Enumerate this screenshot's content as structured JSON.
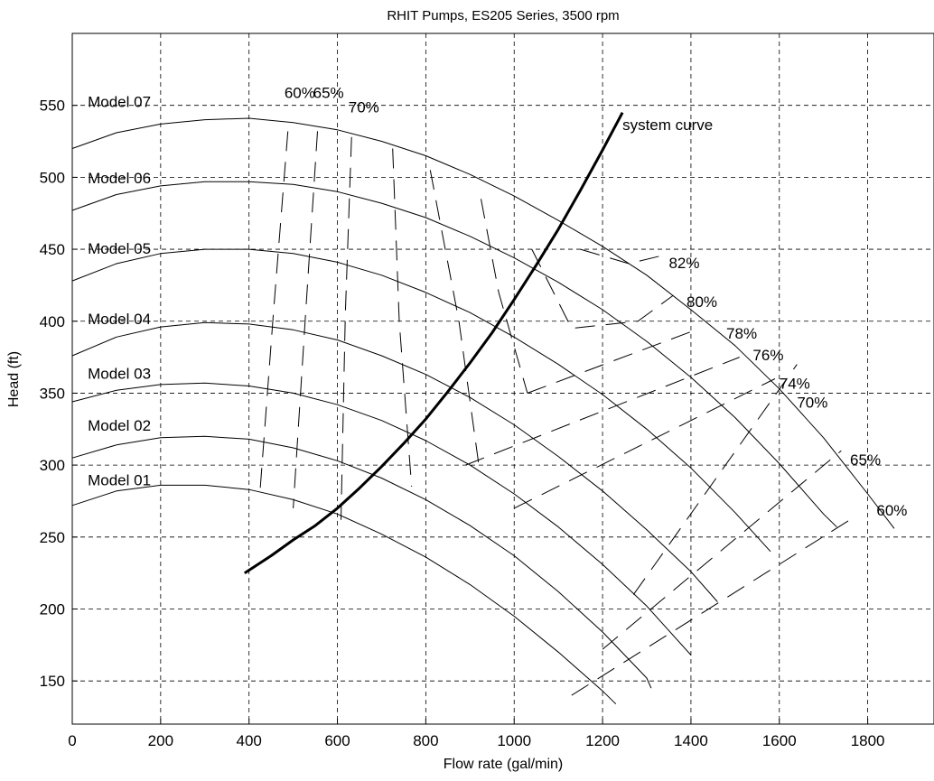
{
  "chart_data": {
    "type": "line",
    "title": "RHIT Pumps,  ES205 Series, 3500 rpm",
    "xlabel": "Flow rate (gal/min)",
    "ylabel": "Head (ft)",
    "xlim": [
      0,
      1950
    ],
    "ylim": [
      120,
      600
    ],
    "xticks": [
      0,
      200,
      400,
      600,
      800,
      1000,
      1200,
      1400,
      1600,
      1800
    ],
    "yticks": [
      150,
      200,
      250,
      300,
      350,
      400,
      450,
      500,
      550
    ],
    "grid": true,
    "series": [
      {
        "name": "Model 07",
        "points": [
          [
            0,
            520
          ],
          [
            100,
            531
          ],
          [
            200,
            537
          ],
          [
            300,
            540
          ],
          [
            400,
            541
          ],
          [
            500,
            538
          ],
          [
            600,
            533
          ],
          [
            700,
            525
          ],
          [
            800,
            515
          ],
          [
            900,
            502
          ],
          [
            1000,
            487
          ],
          [
            1100,
            470
          ],
          [
            1200,
            452
          ],
          [
            1300,
            432
          ],
          [
            1400,
            408
          ],
          [
            1500,
            383
          ],
          [
            1600,
            353
          ],
          [
            1700,
            319
          ],
          [
            1800,
            280
          ],
          [
            1860,
            256
          ]
        ]
      },
      {
        "name": "Model 06",
        "points": [
          [
            0,
            477
          ],
          [
            100,
            488
          ],
          [
            200,
            494
          ],
          [
            300,
            497
          ],
          [
            400,
            497
          ],
          [
            500,
            495
          ],
          [
            600,
            490
          ],
          [
            700,
            482
          ],
          [
            800,
            472
          ],
          [
            900,
            459
          ],
          [
            1000,
            444
          ],
          [
            1100,
            427
          ],
          [
            1200,
            408
          ],
          [
            1300,
            386
          ],
          [
            1400,
            361
          ],
          [
            1500,
            333
          ],
          [
            1600,
            301
          ],
          [
            1700,
            266
          ],
          [
            1730,
            257
          ]
        ]
      },
      {
        "name": "Model 05",
        "points": [
          [
            0,
            428
          ],
          [
            100,
            440
          ],
          [
            200,
            447
          ],
          [
            300,
            450
          ],
          [
            400,
            450
          ],
          [
            500,
            447
          ],
          [
            600,
            441
          ],
          [
            700,
            432
          ],
          [
            800,
            420
          ],
          [
            900,
            406
          ],
          [
            1000,
            389
          ],
          [
            1100,
            370
          ],
          [
            1200,
            349
          ],
          [
            1300,
            325
          ],
          [
            1400,
            298
          ],
          [
            1500,
            267
          ],
          [
            1580,
            240
          ]
        ]
      },
      {
        "name": "Model 04",
        "points": [
          [
            0,
            376
          ],
          [
            100,
            389
          ],
          [
            200,
            396
          ],
          [
            300,
            399
          ],
          [
            400,
            398
          ],
          [
            500,
            394
          ],
          [
            600,
            387
          ],
          [
            700,
            376
          ],
          [
            800,
            363
          ],
          [
            900,
            347
          ],
          [
            1000,
            328
          ],
          [
            1100,
            306
          ],
          [
            1200,
            282
          ],
          [
            1300,
            255
          ],
          [
            1400,
            226
          ],
          [
            1460,
            205
          ]
        ]
      },
      {
        "name": "Model 03",
        "points": [
          [
            0,
            344
          ],
          [
            100,
            352
          ],
          [
            200,
            356
          ],
          [
            300,
            357
          ],
          [
            400,
            355
          ],
          [
            500,
            350
          ],
          [
            600,
            342
          ],
          [
            700,
            331
          ],
          [
            800,
            317
          ],
          [
            900,
            300
          ],
          [
            1000,
            280
          ],
          [
            1100,
            257
          ],
          [
            1200,
            231
          ],
          [
            1300,
            202
          ],
          [
            1400,
            168
          ]
        ]
      },
      {
        "name": "Model 02",
        "points": [
          [
            0,
            305
          ],
          [
            100,
            314
          ],
          [
            200,
            319
          ],
          [
            300,
            320
          ],
          [
            400,
            318
          ],
          [
            500,
            312
          ],
          [
            600,
            303
          ],
          [
            700,
            291
          ],
          [
            800,
            276
          ],
          [
            900,
            258
          ],
          [
            1000,
            237
          ],
          [
            1100,
            212
          ],
          [
            1200,
            184
          ],
          [
            1300,
            152
          ],
          [
            1310,
            145
          ]
        ]
      },
      {
        "name": "Model 01",
        "points": [
          [
            0,
            272
          ],
          [
            100,
            282
          ],
          [
            200,
            286
          ],
          [
            300,
            286
          ],
          [
            400,
            283
          ],
          [
            500,
            276
          ],
          [
            600,
            266
          ],
          [
            700,
            252
          ],
          [
            800,
            236
          ],
          [
            900,
            217
          ],
          [
            1000,
            195
          ],
          [
            1100,
            170
          ],
          [
            1200,
            143
          ],
          [
            1230,
            134
          ]
        ]
      },
      {
        "name": "system curve",
        "points": [
          [
            390,
            225
          ],
          [
            450,
            237
          ],
          [
            500,
            248
          ],
          [
            550,
            258
          ],
          [
            600,
            270
          ],
          [
            650,
            284
          ],
          [
            700,
            299
          ],
          [
            750,
            315
          ],
          [
            800,
            332
          ],
          [
            850,
            351
          ],
          [
            900,
            371
          ],
          [
            950,
            392
          ],
          [
            1000,
            415
          ],
          [
            1050,
            439
          ],
          [
            1100,
            464
          ],
          [
            1150,
            491
          ],
          [
            1200,
            519
          ],
          [
            1245,
            545
          ]
        ]
      }
    ],
    "efficiency_contours": [
      {
        "name": "60%",
        "points": [
          [
            488,
            532
          ],
          [
            455,
            405
          ],
          [
            425,
            282
          ]
        ]
      },
      {
        "name": "60%",
        "points": [
          [
            1130,
            140
          ],
          [
            1760,
            262
          ]
        ]
      },
      {
        "name": "65%",
        "points": [
          [
            555,
            532
          ],
          [
            528,
            405
          ],
          [
            500,
            270
          ]
        ]
      },
      {
        "name": "65%",
        "points": [
          [
            1200,
            172
          ],
          [
            1740,
            310
          ]
        ]
      },
      {
        "name": "70%",
        "points": [
          [
            632,
            528
          ],
          [
            618,
            405
          ],
          [
            608,
            262
          ]
        ]
      },
      {
        "name": "70%",
        "points": [
          [
            1270,
            210
          ],
          [
            1640,
            370
          ]
        ]
      },
      {
        "name": "74%",
        "points": [
          [
            725,
            520
          ],
          [
            740,
            400
          ],
          [
            768,
            285
          ]
        ]
      },
      {
        "name": "74%",
        "points": [
          [
            1000,
            270
          ],
          [
            1590,
            360
          ]
        ]
      },
      {
        "name": "76%",
        "points": [
          [
            810,
            505
          ],
          [
            875,
            400
          ],
          [
            920,
            300
          ]
        ]
      },
      {
        "name": "76%",
        "points": [
          [
            890,
            300
          ],
          [
            1510,
            375
          ]
        ]
      },
      {
        "name": "78%",
        "points": [
          [
            925,
            485
          ],
          [
            965,
            420
          ],
          [
            1030,
            350
          ]
        ]
      },
      {
        "name": "78%",
        "points": [
          [
            1030,
            350
          ],
          [
            1420,
            395
          ]
        ]
      },
      {
        "name": "80%",
        "points": [
          [
            1040,
            450
          ],
          [
            1130,
            395
          ],
          [
            1280,
            400
          ],
          [
            1360,
            418
          ]
        ]
      },
      {
        "name": "82%",
        "points": [
          [
            1150,
            450
          ],
          [
            1260,
            440
          ],
          [
            1340,
            446
          ]
        ]
      }
    ],
    "annotations": [
      {
        "text": "Model 07",
        "x": 35,
        "y": 549
      },
      {
        "text": "Model 06",
        "x": 35,
        "y": 496
      },
      {
        "text": "Model 05",
        "x": 35,
        "y": 447
      },
      {
        "text": "Model 04",
        "x": 35,
        "y": 398
      },
      {
        "text": "Model 03",
        "x": 35,
        "y": 360
      },
      {
        "text": "Model 02",
        "x": 35,
        "y": 324
      },
      {
        "text": "Model 01",
        "x": 35,
        "y": 286
      },
      {
        "text": "system curve",
        "x": 1245,
        "y": 533
      },
      {
        "text": "60%",
        "x": 480,
        "y": 555
      },
      {
        "text": "65%",
        "x": 545,
        "y": 555
      },
      {
        "text": "70%",
        "x": 625,
        "y": 545
      },
      {
        "text": "82%",
        "x": 1350,
        "y": 437
      },
      {
        "text": "80%",
        "x": 1390,
        "y": 410
      },
      {
        "text": "78%",
        "x": 1480,
        "y": 388
      },
      {
        "text": "76%",
        "x": 1540,
        "y": 373
      },
      {
        "text": "74%",
        "x": 1600,
        "y": 353
      },
      {
        "text": "70%",
        "x": 1640,
        "y": 340
      },
      {
        "text": "65%",
        "x": 1760,
        "y": 300
      },
      {
        "text": "60%",
        "x": 1820,
        "y": 265
      }
    ]
  }
}
